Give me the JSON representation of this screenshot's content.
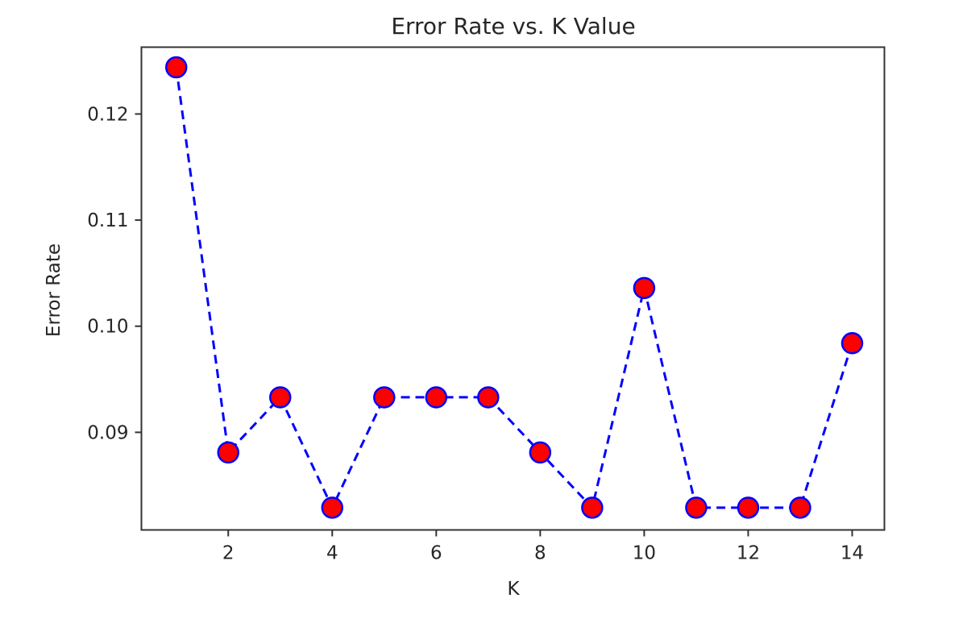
{
  "chart_data": {
    "type": "line",
    "title": "Error Rate vs. K Value",
    "xlabel": "K",
    "ylabel": "Error Rate",
    "x": [
      1,
      2,
      3,
      4,
      5,
      6,
      7,
      8,
      9,
      10,
      11,
      12,
      13,
      14
    ],
    "series": [
      {
        "name": "error_rate",
        "values": [
          0.1244,
          0.0881,
          0.0933,
          0.0829,
          0.0933,
          0.0933,
          0.0933,
          0.0881,
          0.0829,
          0.1036,
          0.0829,
          0.0829,
          0.0829,
          0.0984
        ],
        "line_color": "#0000ff",
        "line_style": "dashed",
        "marker": "circle",
        "marker_face_color": "#ff0000",
        "marker_edge_color": "#0000ff"
      }
    ],
    "xticks": [
      2,
      4,
      6,
      8,
      10,
      12,
      14
    ],
    "xtick_labels": [
      "2",
      "4",
      "6",
      "8",
      "10",
      "12",
      "14"
    ],
    "yticks": [
      0.09,
      0.1,
      0.11,
      0.12
    ],
    "ytick_labels": [
      "0.09",
      "0.10",
      "0.11",
      "0.12"
    ],
    "xlim": [
      0.33,
      14.62
    ],
    "ylim": [
      0.0808,
      0.1263
    ],
    "grid": false,
    "legend": null
  }
}
